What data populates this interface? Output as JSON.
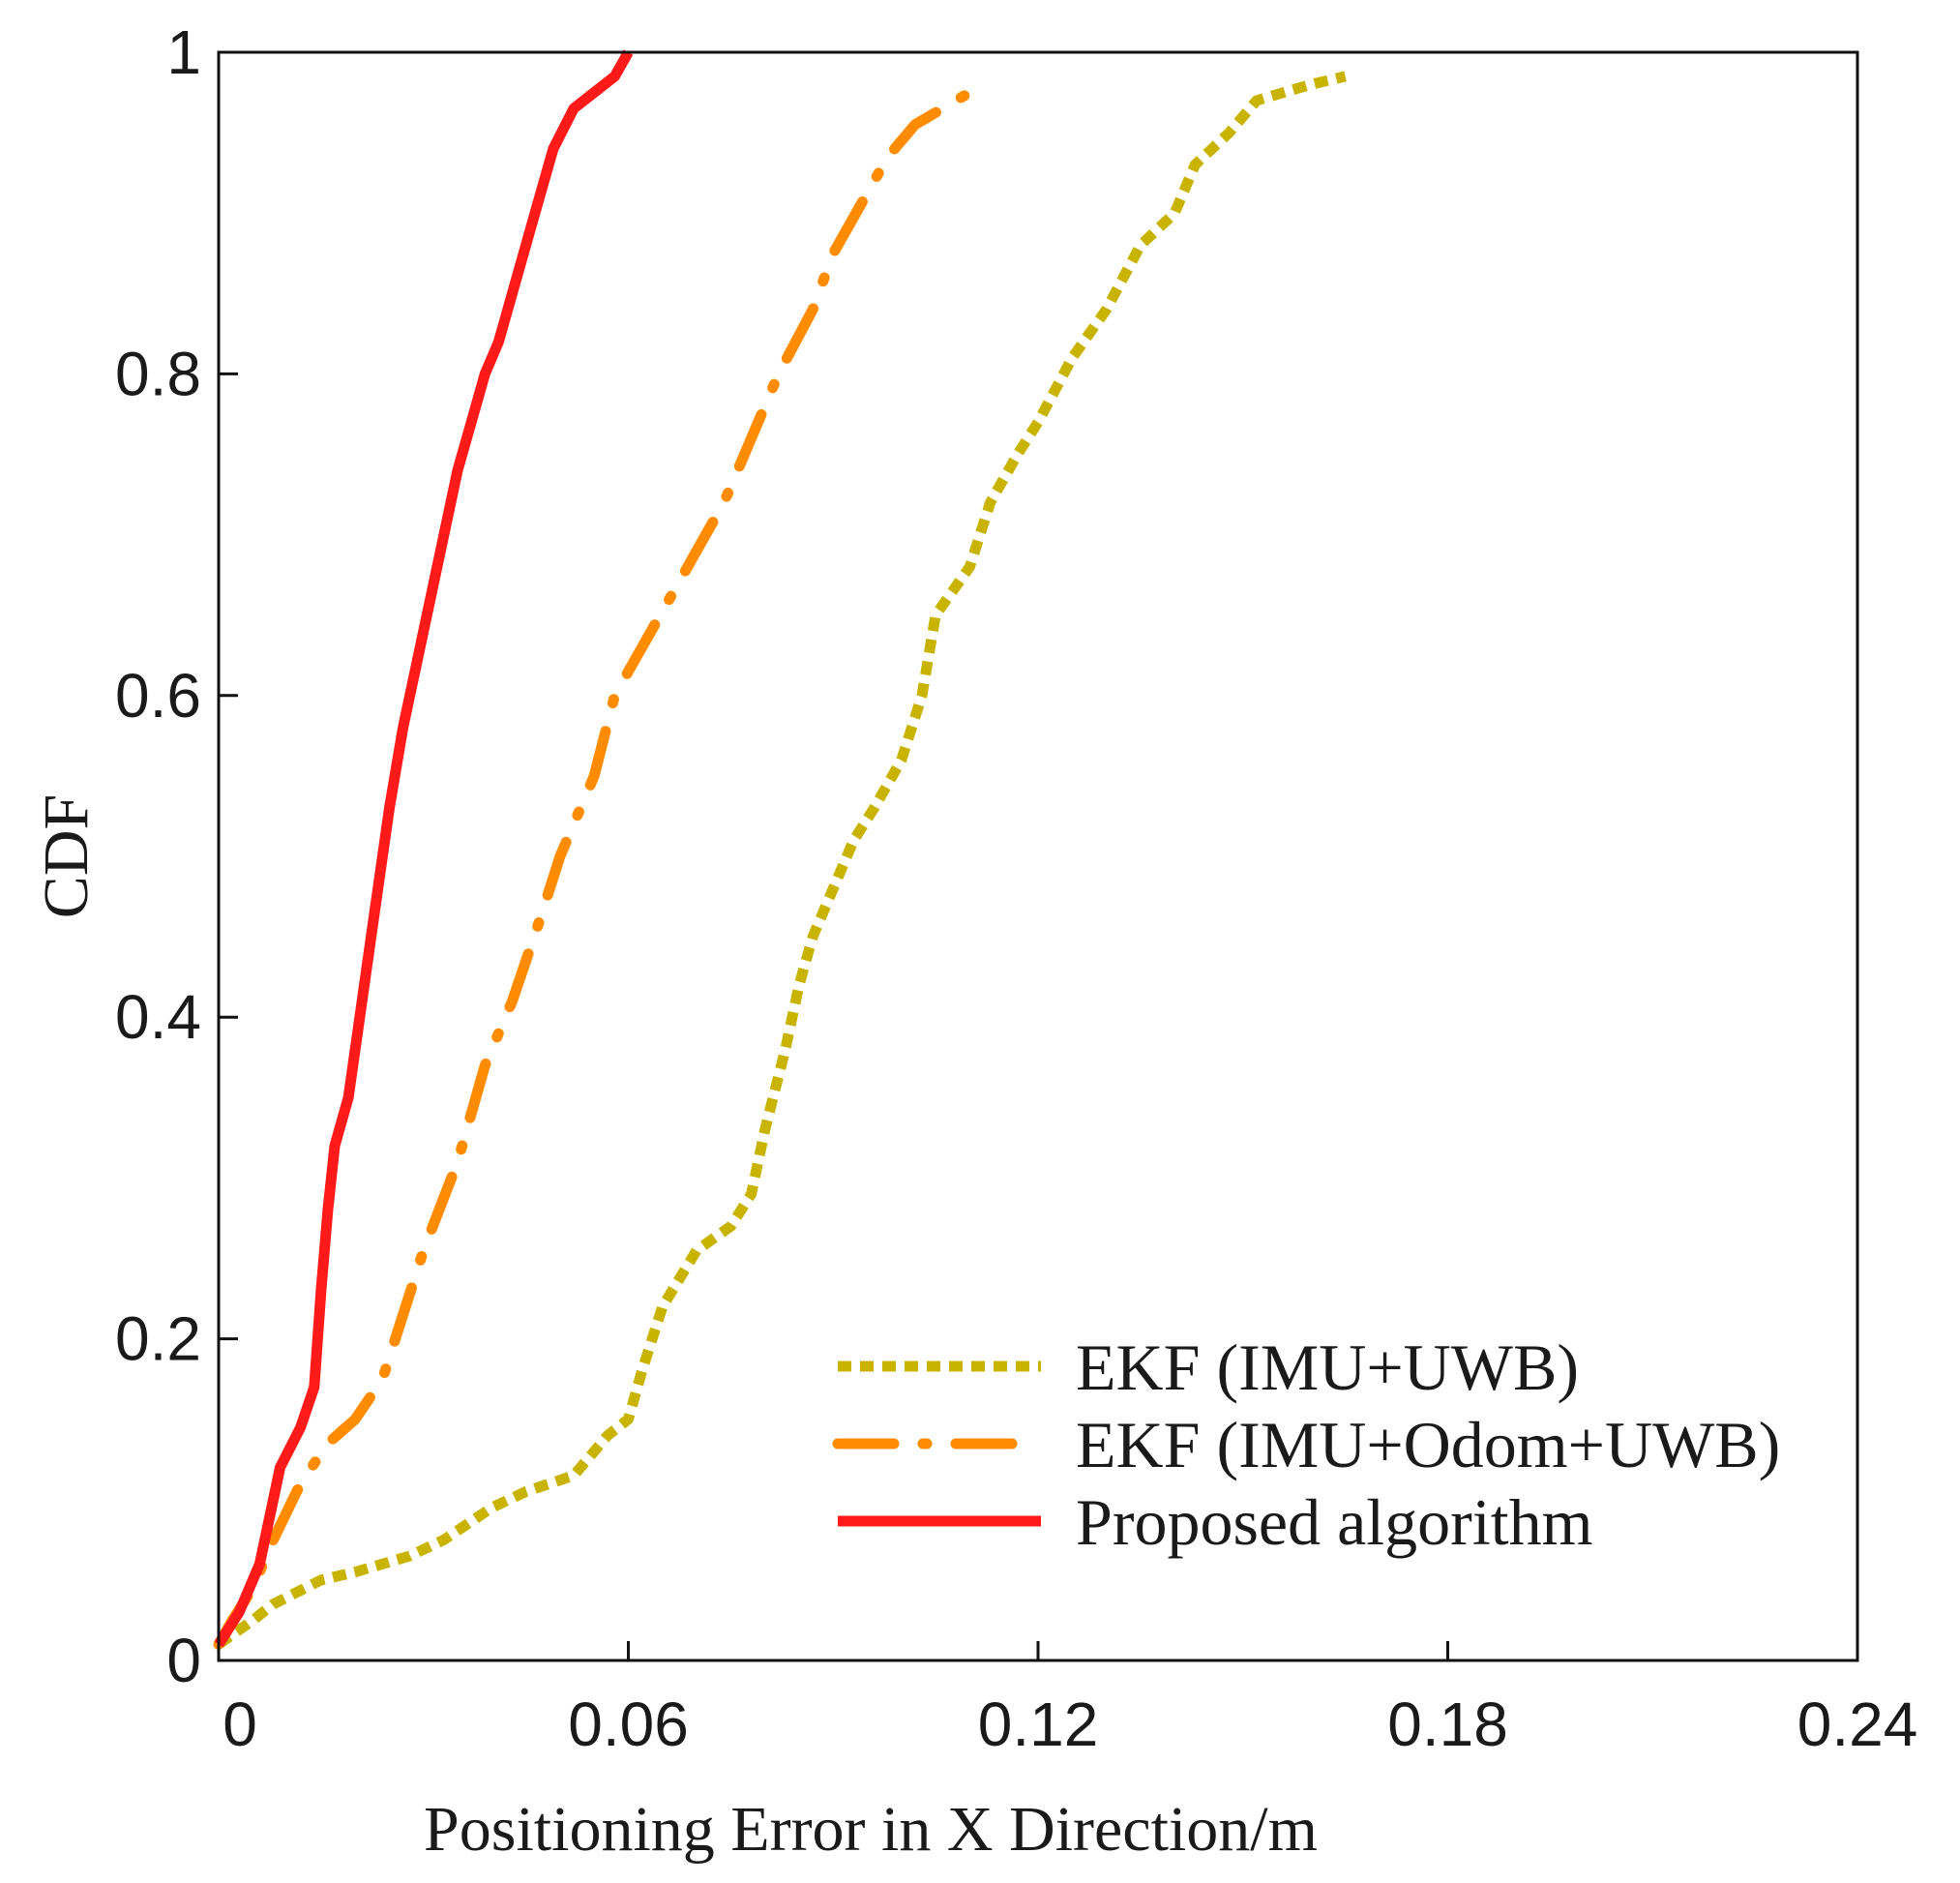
{
  "chart_data": {
    "type": "line",
    "title": "",
    "xlabel": "Positioning Error in X Direction/m",
    "ylabel": "CDF",
    "xlim": [
      0,
      0.24
    ],
    "ylim": [
      0,
      1
    ],
    "xticks": [
      0,
      0.06,
      0.12,
      0.18,
      0.24
    ],
    "xtick_labels": [
      "0",
      "0.06",
      "0.12",
      "0.18",
      "0.24"
    ],
    "yticks": [
      0,
      0.2,
      0.4,
      0.6,
      0.8,
      1
    ],
    "ytick_labels": [
      "0",
      "0.2",
      "0.4",
      "0.6",
      "0.8",
      "1"
    ],
    "grid": false,
    "legend_position": "bottom-right",
    "series": [
      {
        "name": "EKF (IMU+UWB)",
        "color": "#c8b400",
        "style": "dotted",
        "x": [
          0.0,
          0.005,
          0.008,
          0.015,
          0.02,
          0.028,
          0.033,
          0.04,
          0.045,
          0.052,
          0.057,
          0.06,
          0.062,
          0.065,
          0.07,
          0.075,
          0.078,
          0.08,
          0.083,
          0.085,
          0.087,
          0.09,
          0.093,
          0.096,
          0.1,
          0.103,
          0.105,
          0.11,
          0.113,
          0.117,
          0.12,
          0.125,
          0.13,
          0.135,
          0.14,
          0.143,
          0.148,
          0.152,
          0.156,
          0.16,
          0.165
        ],
        "y": [
          0.01,
          0.025,
          0.035,
          0.05,
          0.055,
          0.065,
          0.075,
          0.095,
          0.105,
          0.115,
          0.14,
          0.15,
          0.18,
          0.22,
          0.255,
          0.27,
          0.29,
          0.33,
          0.38,
          0.42,
          0.45,
          0.48,
          0.51,
          0.53,
          0.56,
          0.6,
          0.65,
          0.68,
          0.72,
          0.75,
          0.77,
          0.81,
          0.84,
          0.88,
          0.9,
          0.93,
          0.95,
          0.97,
          0.975,
          0.98,
          0.985
        ]
      },
      {
        "name": "EKF (IMU+Odom+UWB)",
        "color": "#ff8c00",
        "style": "dashdot",
        "x": [
          0.0,
          0.002,
          0.005,
          0.008,
          0.012,
          0.016,
          0.02,
          0.024,
          0.027,
          0.03,
          0.035,
          0.039,
          0.043,
          0.047,
          0.05,
          0.055,
          0.058,
          0.062,
          0.066,
          0.07,
          0.074,
          0.078,
          0.082,
          0.087,
          0.09,
          0.094,
          0.098,
          0.102,
          0.106,
          0.11
        ],
        "y": [
          0.01,
          0.025,
          0.045,
          0.075,
          0.11,
          0.135,
          0.15,
          0.175,
          0.215,
          0.255,
          0.31,
          0.37,
          0.41,
          0.46,
          0.5,
          0.55,
          0.6,
          0.63,
          0.66,
          0.69,
          0.72,
          0.76,
          0.8,
          0.84,
          0.875,
          0.905,
          0.935,
          0.955,
          0.965,
          0.975
        ]
      },
      {
        "name": "Proposed algorithm",
        "color": "#ff1a1a",
        "style": "solid",
        "x": [
          0.0,
          0.003,
          0.006,
          0.008,
          0.009,
          0.012,
          0.014,
          0.015,
          0.016,
          0.017,
          0.019,
          0.021,
          0.023,
          0.025,
          0.027,
          0.029,
          0.031,
          0.033,
          0.035,
          0.037,
          0.039,
          0.041,
          0.043,
          0.045,
          0.047,
          0.049,
          0.052,
          0.055,
          0.058,
          0.06
        ],
        "y": [
          0.01,
          0.03,
          0.06,
          0.1,
          0.12,
          0.145,
          0.17,
          0.23,
          0.28,
          0.32,
          0.35,
          0.41,
          0.47,
          0.53,
          0.58,
          0.62,
          0.66,
          0.7,
          0.74,
          0.77,
          0.8,
          0.82,
          0.85,
          0.88,
          0.91,
          0.94,
          0.965,
          0.975,
          0.985,
          1.0
        ]
      }
    ]
  }
}
